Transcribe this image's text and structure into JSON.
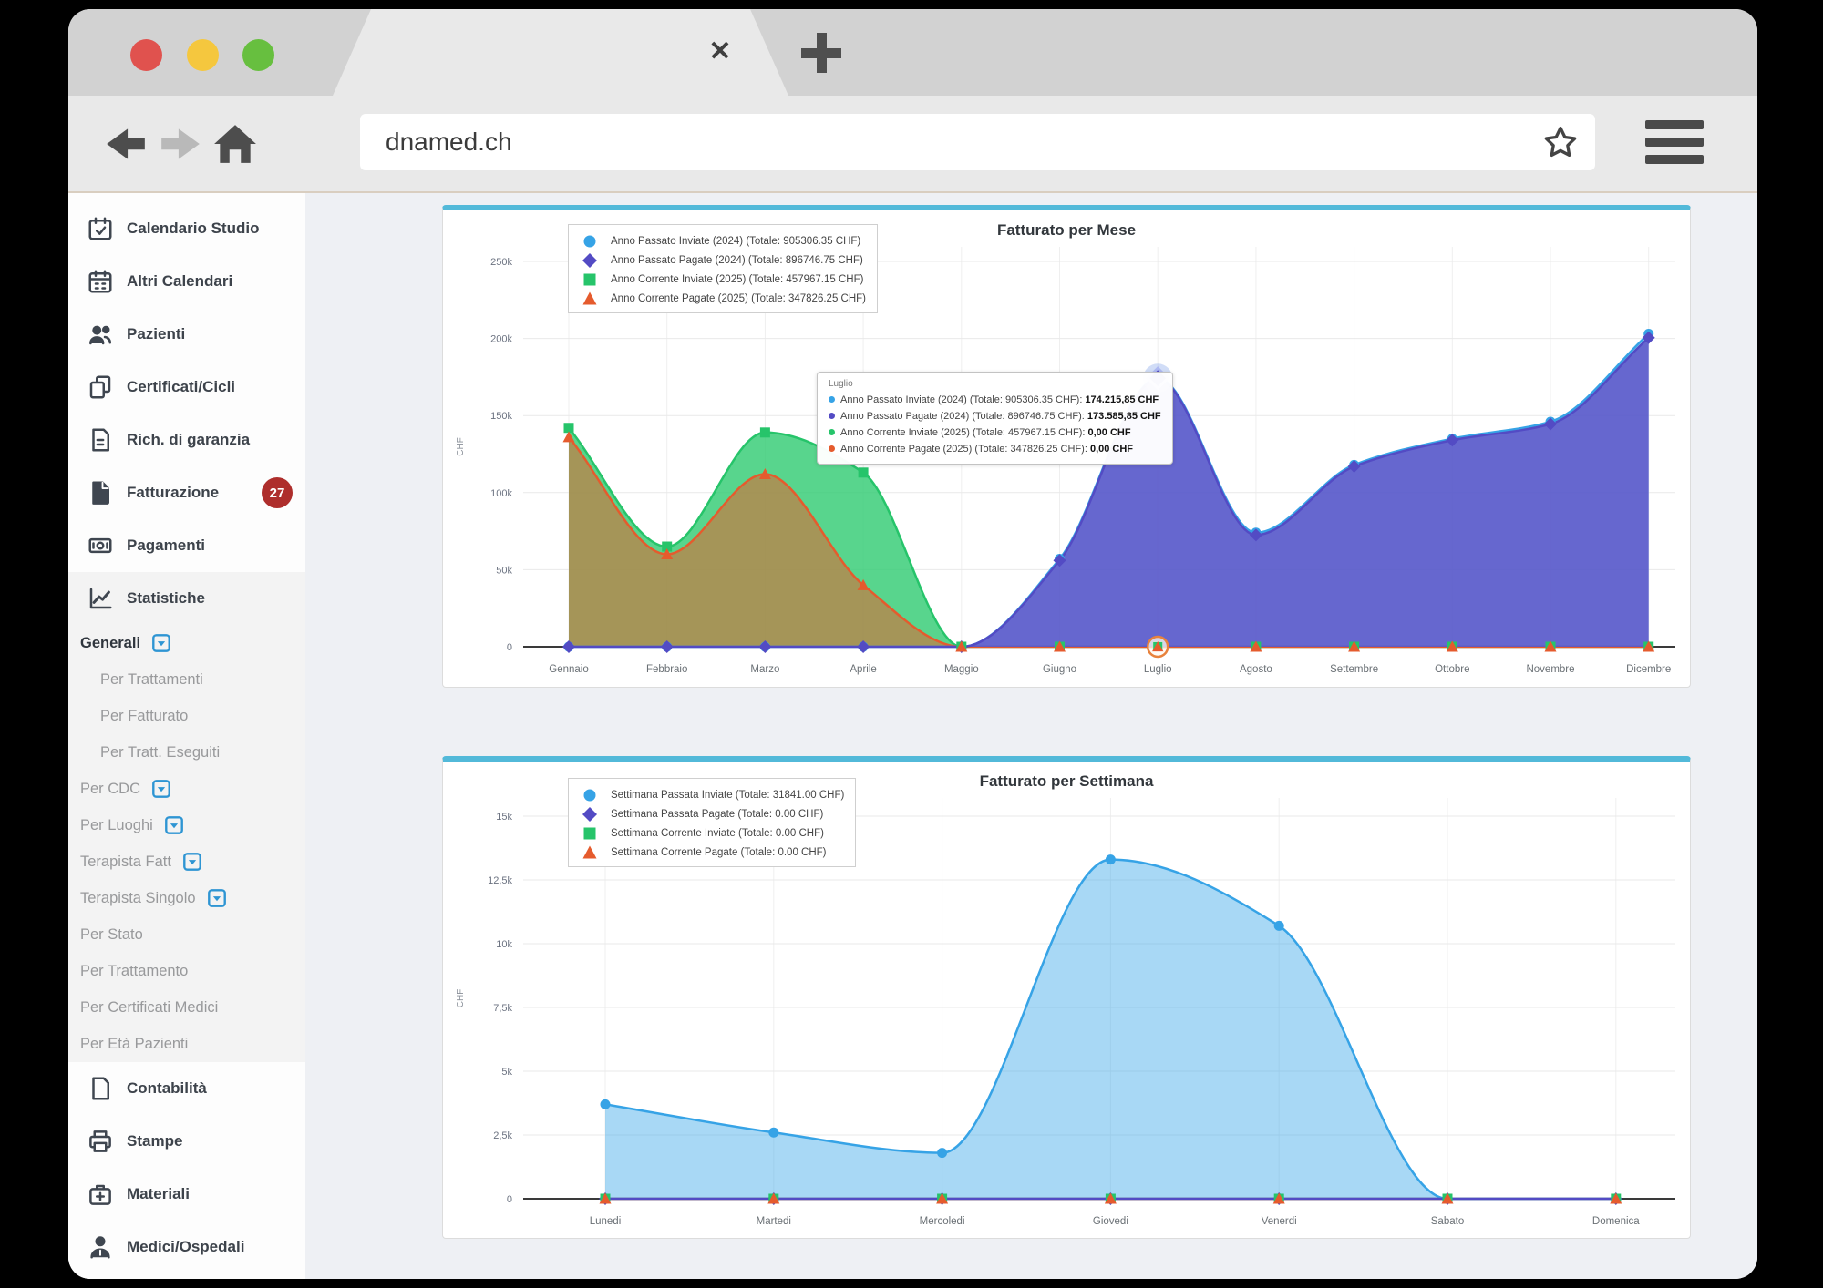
{
  "browser": {
    "url": "dnamed.ch",
    "tab_close_label": "✕",
    "traffic_light_colors": [
      "#e0524e",
      "#f5c73e",
      "#67bf3f"
    ]
  },
  "colors": {
    "card_accent": "#52b9d9",
    "badge": "#ae2e2c",
    "caret_icon": "#2e95d3"
  },
  "sidebar": {
    "items": [
      {
        "label": "Calendario Studio",
        "icon": "calendar-check",
        "level": "top"
      },
      {
        "label": "Altri Calendari",
        "icon": "calendar",
        "level": "top"
      },
      {
        "label": "Pazienti",
        "icon": "users",
        "level": "top"
      },
      {
        "label": "Certificati/Cicli",
        "icon": "copy",
        "level": "top"
      },
      {
        "label": "Rich. di garanzia",
        "icon": "file-lines",
        "level": "top"
      },
      {
        "label": "Fatturazione",
        "icon": "file-solid",
        "level": "top",
        "badge": "27"
      },
      {
        "label": "Pagamenti",
        "icon": "money-bill",
        "level": "top"
      },
      {
        "label": "Statistiche",
        "icon": "chart-line",
        "level": "top",
        "section": "stats"
      },
      {
        "label": "Generali",
        "level": "head",
        "bold": true,
        "caret": true,
        "section": "stats"
      },
      {
        "label": "Per Trattamenti",
        "level": "sub",
        "section": "stats"
      },
      {
        "label": "Per Fatturato",
        "level": "sub",
        "section": "stats"
      },
      {
        "label": "Per Tratt. Eseguiti",
        "level": "sub",
        "section": "stats"
      },
      {
        "label": "Per CDC",
        "level": "head",
        "caret": true,
        "section": "stats"
      },
      {
        "label": "Per Luoghi",
        "level": "head",
        "caret": true,
        "section": "stats"
      },
      {
        "label": "Terapista Fatt",
        "level": "head",
        "caret": true,
        "section": "stats"
      },
      {
        "label": "Terapista Singolo",
        "level": "head",
        "caret": true,
        "section": "stats"
      },
      {
        "label": "Per Stato",
        "level": "head",
        "section": "stats"
      },
      {
        "label": "Per Trattamento",
        "level": "head",
        "section": "stats"
      },
      {
        "label": "Per Certificati Medici",
        "level": "head",
        "section": "stats"
      },
      {
        "label": "Per Età Pazienti",
        "level": "head",
        "section": "stats"
      },
      {
        "label": "Contabilità",
        "icon": "file",
        "level": "top"
      },
      {
        "label": "Stampe",
        "icon": "print",
        "level": "top"
      },
      {
        "label": "Materiali",
        "icon": "medkit",
        "level": "top"
      },
      {
        "label": "Medici/Ospedali",
        "icon": "user-doctor",
        "level": "top"
      }
    ]
  },
  "chart_data": [
    {
      "type": "area",
      "title": "Fatturato per Mese",
      "ylabel": "CHF",
      "legend_position": "top-left",
      "grid": true,
      "ylim": [
        0,
        260000
      ],
      "categories": [
        "Gennaio",
        "Febbraio",
        "Marzo",
        "Aprile",
        "Maggio",
        "Giugno",
        "Luglio",
        "Agosto",
        "Settembre",
        "Ottobre",
        "Novembre",
        "Dicembre"
      ],
      "y_ticks": [
        {
          "label": "250k",
          "value": 250000
        },
        {
          "label": "200k",
          "value": 200000
        },
        {
          "label": "150k",
          "value": 150000
        },
        {
          "label": "100k",
          "value": 100000
        },
        {
          "label": "50k",
          "value": 50000
        },
        {
          "label": "0",
          "value": 0
        }
      ],
      "series": [
        {
          "name": "Anno Passato Inviate (2024) (Totale: 905306.35 CHF)",
          "marker": "circle",
          "color": "#36a3e6",
          "fill": "rgba(63,169,232,0.45)",
          "values": [
            0,
            0,
            0,
            0,
            0,
            57000,
            174215.85,
            74000,
            118000,
            135000,
            146000,
            203000
          ]
        },
        {
          "name": "Anno Passato Pagate (2024) (Totale: 896746.75 CHF)",
          "marker": "diamond",
          "color": "#534bc4",
          "fill": "rgba(91,84,200,0.85)",
          "values": [
            0,
            0,
            0,
            0,
            0,
            56000,
            173585.85,
            72500,
            117000,
            134000,
            144500,
            200500
          ]
        },
        {
          "name": "Anno Corrente Inviate (2025) (Totale: 457967.15 CHF)",
          "marker": "square",
          "color": "#26c46a",
          "fill": "rgba(46,203,113,0.8)",
          "values": [
            142000,
            65000,
            139000,
            113000,
            0,
            0,
            0,
            0,
            0,
            0,
            0,
            0
          ]
        },
        {
          "name": "Anno Corrente Pagate (2025) (Totale: 347826.25 CHF)",
          "marker": "triangle",
          "color": "#e55b2d",
          "fill": "rgba(230,96,46,0.55)",
          "values": [
            136000,
            60000,
            112000,
            40000,
            0,
            0,
            0,
            0,
            0,
            0,
            0,
            0
          ]
        }
      ],
      "highlight": {
        "category": "Luglio",
        "index": 6
      },
      "tooltip": {
        "title": "Luglio",
        "rows": [
          {
            "color": "#36a3e6",
            "label": "Anno Passato Inviate (2024) (Totale: 905306.35 CHF):",
            "value": "174.215,85 CHF"
          },
          {
            "color": "#534bc4",
            "label": "Anno Passato Pagate (2024) (Totale: 896746.75 CHF):",
            "value": "173.585,85 CHF"
          },
          {
            "color": "#26c46a",
            "label": "Anno Corrente Inviate (2025) (Totale: 457967.15 CHF):",
            "value": "0,00 CHF"
          },
          {
            "color": "#e55b2d",
            "label": "Anno Corrente Pagate (2025) (Totale: 347826.25 CHF):",
            "value": "0,00 CHF"
          }
        ]
      }
    },
    {
      "type": "area",
      "title": "Fatturato per Settimana",
      "ylabel": "CHF",
      "legend_position": "top-left",
      "grid": true,
      "ylim": [
        0,
        15700
      ],
      "categories": [
        "Lunedi",
        "Martedi",
        "Mercoledi",
        "Giovedi",
        "Venerdi",
        "Sabato",
        "Domenica"
      ],
      "y_ticks": [
        {
          "label": "15k",
          "value": 15000
        },
        {
          "label": "12,5k",
          "value": 12500
        },
        {
          "label": "10k",
          "value": 10000
        },
        {
          "label": "7,5k",
          "value": 7500
        },
        {
          "label": "5k",
          "value": 5000
        },
        {
          "label": "2,5k",
          "value": 2500
        },
        {
          "label": "0",
          "value": 0
        }
      ],
      "series": [
        {
          "name": "Settimana Passata Inviate (Totale: 31841.00 CHF)",
          "marker": "circle",
          "color": "#36a3e6",
          "fill": "rgba(63,169,232,0.45)",
          "values": [
            3700,
            2600,
            1800,
            13300,
            10700,
            0,
            0
          ]
        },
        {
          "name": "Settimana Passata Pagate (Totale: 0.00 CHF)",
          "marker": "diamond",
          "color": "#534bc4",
          "fill": "rgba(91,84,200,0.85)",
          "values": [
            0,
            0,
            0,
            0,
            0,
            0,
            0
          ]
        },
        {
          "name": "Settimana Corrente Inviate (Totale: 0.00 CHF)",
          "marker": "square",
          "color": "#26c46a",
          "fill": "rgba(46,203,113,0.8)",
          "values": [
            0,
            0,
            0,
            0,
            0,
            0,
            0
          ]
        },
        {
          "name": "Settimana Corrente Pagate (Totale: 0.00 CHF)",
          "marker": "triangle",
          "color": "#e55b2d",
          "fill": "rgba(230,96,46,0.55)",
          "values": [
            0,
            0,
            0,
            0,
            0,
            0,
            0
          ]
        }
      ]
    }
  ]
}
